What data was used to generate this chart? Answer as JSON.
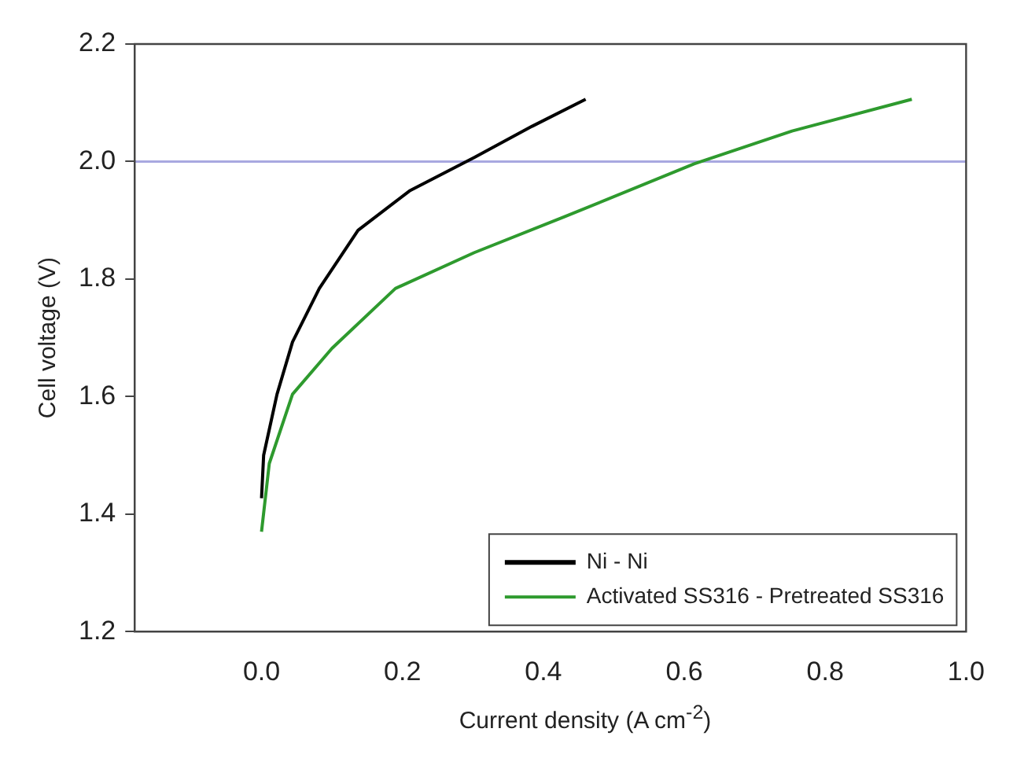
{
  "chart_data": {
    "type": "line",
    "xlabel": "Current density (A cm$^{-2}$)",
    "ylabel": "Cell voltage (V)",
    "xlim": [
      -0.18,
      1.0
    ],
    "xticks": [
      {
        "value": 0,
        "label": "0.0"
      },
      0.2,
      0.4,
      0.6,
      0.8,
      {
        "value": 1,
        "label": "1.0"
      }
    ],
    "ylim": [
      1.2,
      2.2
    ],
    "yticks": [
      1.2,
      1.4,
      1.6,
      1.8,
      {
        "value": 2,
        "label": "2.0"
      },
      2.2
    ],
    "grid": false,
    "legend": "bottom right",
    "marker": "none",
    "line_style": "solid",
    "ref_lines": [
      {
        "axis": "y",
        "value": 2.0,
        "color": "#a8a8e0"
      }
    ],
    "series": [
      {
        "name": "Ni - Ni",
        "color": "#000000",
        "x": [
          0.0,
          0.003,
          0.022,
          0.044,
          0.082,
          0.137,
          0.21,
          0.302,
          0.384,
          0.46
        ],
        "values": [
          1.427,
          1.5,
          1.604,
          1.693,
          1.784,
          1.883,
          1.95,
          2.007,
          2.06,
          2.106
        ]
      },
      {
        "name": "Activated SS316 - Pretreated SS316",
        "color": "#2e9a2e",
        "x": [
          0.0,
          0.011,
          0.044,
          0.1,
          0.19,
          0.302,
          0.43,
          0.614,
          0.753,
          0.923
        ],
        "values": [
          1.37,
          1.486,
          1.604,
          1.682,
          1.784,
          1.845,
          1.906,
          1.996,
          2.052,
          2.106
        ]
      }
    ]
  }
}
